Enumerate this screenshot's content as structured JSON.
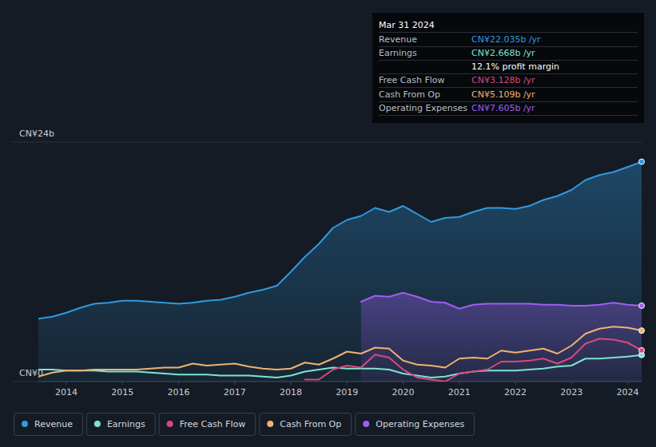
{
  "chart_data": {
    "type": "line",
    "grid": true,
    "tick_labels": true,
    "xlim": [
      2013.5,
      2024.25
    ],
    "xticks": [
      2014,
      2015,
      2016,
      2017,
      2018,
      2019,
      2020,
      2021,
      2022,
      2023,
      2024
    ],
    "ylim": [
      0,
      24
    ],
    "yticks": [
      {
        "value": 0,
        "label": "CN¥0"
      },
      {
        "value": 24,
        "label": "CN¥24b"
      }
    ],
    "x": [
      2013.5,
      2013.75,
      2014,
      2014.25,
      2014.5,
      2014.75,
      2015,
      2015.25,
      2015.5,
      2015.75,
      2016,
      2016.25,
      2016.5,
      2016.75,
      2017,
      2017.25,
      2017.5,
      2017.75,
      2018,
      2018.25,
      2018.5,
      2018.75,
      2019,
      2019.25,
      2019.5,
      2019.75,
      2020,
      2020.25,
      2020.5,
      2020.75,
      2021,
      2021.25,
      2021.5,
      2021.75,
      2022,
      2022.25,
      2022.5,
      2022.75,
      2023,
      2023.25,
      2023.5,
      2023.75,
      2024,
      2024.25
    ],
    "series": [
      {
        "name": "Revenue",
        "color": "#2f9ae0",
        "type": "area",
        "values": [
          6.3,
          6.5,
          6.9,
          7.4,
          7.8,
          7.9,
          8.1,
          8.1,
          8.0,
          7.9,
          7.8,
          7.9,
          8.1,
          8.2,
          8.5,
          8.9,
          9.2,
          9.6,
          11.0,
          12.5,
          13.8,
          15.4,
          16.2,
          16.6,
          17.4,
          17.0,
          17.6,
          16.8,
          16.0,
          16.4,
          16.5,
          17.0,
          17.4,
          17.4,
          17.3,
          17.6,
          18.2,
          18.6,
          19.2,
          20.2,
          20.7,
          21.0,
          21.5,
          22.035
        ]
      },
      {
        "name": "Earnings",
        "color": "#7de3d0",
        "type": "line",
        "values": [
          1.2,
          1.2,
          1.1,
          1.1,
          1.1,
          1.0,
          1.0,
          1.0,
          0.9,
          0.8,
          0.7,
          0.7,
          0.7,
          0.6,
          0.6,
          0.6,
          0.5,
          0.4,
          0.6,
          1.0,
          1.2,
          1.4,
          1.3,
          1.3,
          1.3,
          1.2,
          0.8,
          0.6,
          0.4,
          0.5,
          0.8,
          1.0,
          1.1,
          1.1,
          1.1,
          1.2,
          1.3,
          1.5,
          1.6,
          2.3,
          2.3,
          2.4,
          2.5,
          2.668
        ]
      },
      {
        "name": "Free Cash Flow",
        "color": "#d9487f",
        "type": "line",
        "values": [
          null,
          null,
          null,
          null,
          null,
          null,
          null,
          null,
          null,
          null,
          null,
          null,
          null,
          null,
          null,
          null,
          null,
          null,
          null,
          0.2,
          0.2,
          1.2,
          1.6,
          1.4,
          2.7,
          2.4,
          1.2,
          0.4,
          0.2,
          0.0,
          0.8,
          1.0,
          1.2,
          2.0,
          2.0,
          2.1,
          2.3,
          1.8,
          2.4,
          3.8,
          4.3,
          4.2,
          3.9,
          3.128
        ]
      },
      {
        "name": "Cash From Op",
        "color": "#f0b26e",
        "type": "line",
        "values": [
          0.5,
          0.9,
          1.1,
          1.1,
          1.2,
          1.2,
          1.2,
          1.2,
          1.3,
          1.4,
          1.4,
          1.8,
          1.6,
          1.7,
          1.8,
          1.5,
          1.3,
          1.2,
          1.3,
          1.9,
          1.7,
          2.3,
          3.0,
          2.8,
          3.4,
          3.3,
          2.1,
          1.7,
          1.6,
          1.4,
          2.3,
          2.4,
          2.3,
          3.1,
          2.9,
          3.1,
          3.3,
          2.8,
          3.6,
          4.8,
          5.3,
          5.5,
          5.4,
          5.109
        ]
      },
      {
        "name": "Operating Expenses",
        "color": "#a25cf2",
        "type": "area",
        "values": [
          null,
          null,
          null,
          null,
          null,
          null,
          null,
          null,
          null,
          null,
          null,
          null,
          null,
          null,
          null,
          null,
          null,
          null,
          null,
          null,
          null,
          null,
          null,
          8.0,
          8.6,
          8.5,
          8.9,
          8.5,
          8.0,
          7.9,
          7.3,
          7.7,
          7.8,
          7.8,
          7.8,
          7.8,
          7.7,
          7.7,
          7.6,
          7.6,
          7.7,
          7.9,
          7.7,
          7.605
        ]
      }
    ],
    "annotation": {
      "title": "Mar 31 2024",
      "rows": [
        {
          "label": "Revenue",
          "text": "CN¥22.035b /yr",
          "color": "#2f9ae0"
        },
        {
          "label": "Earnings",
          "text": "CN¥2.668b /yr",
          "color": "#7de3d0"
        },
        {
          "text": "12.1% profit margin",
          "color": "#ffffff"
        },
        {
          "label": "Free Cash Flow",
          "text": "CN¥3.128b /yr",
          "color": "#d9487f"
        },
        {
          "label": "Cash From Op",
          "text": "CN¥5.109b /yr",
          "color": "#f0b26e"
        },
        {
          "label": "Operating Expenses",
          "text": "CN¥7.605b /yr",
          "color": "#a25cf2"
        }
      ]
    }
  }
}
